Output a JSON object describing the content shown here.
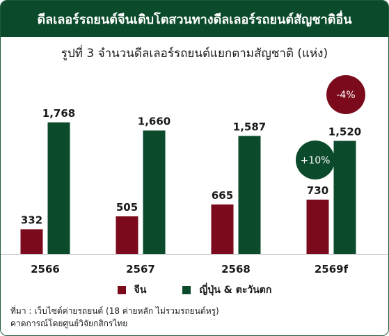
{
  "header": {
    "title": "ดีลเลอร์รถยนต์จีนเติบโตสวนทางดีลเลอร์รถยนต์สัญชาติอื่น"
  },
  "colors": {
    "china": "#7a0a1c",
    "japan_west": "#0b4a2b",
    "bubble_down": "#7a0a1c",
    "bubble_up": "#0b4a2b"
  },
  "chart_data": {
    "type": "bar",
    "title": "รูปที่ 3 จำนวนดีลเลอร์รถยนต์แยกตามสัญชาติ (แห่ง)",
    "categories": [
      "2566",
      "2567",
      "2568",
      "2569f"
    ],
    "series": [
      {
        "name": "จีน",
        "values": [
          332,
          505,
          665,
          730
        ],
        "labels": [
          "332",
          "505",
          "665",
          "730"
        ]
      },
      {
        "name": "ญี่ปุ่น & ตะวันตก",
        "values": [
          1768,
          1660,
          1587,
          1520
        ],
        "labels": [
          "1,768",
          "1,660",
          "1,587",
          "1,520"
        ]
      }
    ],
    "ylim": [
      0,
      1768
    ],
    "grid": false,
    "legend": "bottom",
    "annotations": [
      {
        "text": "+10%",
        "category": "2569f",
        "series": "จีน"
      },
      {
        "text": "-4%",
        "category": "2569f",
        "series": "ญี่ปุ่น & ตะวันตก"
      }
    ]
  },
  "footnote": {
    "line1": "ที่มา : เว็บไซต์ค่ายรถยนต์ (18 ค่ายหลัก ไม่รวมรถยนต์หรู)",
    "line2": "คาดการณ์โดยศูนย์วิจัยกสิกรไทย"
  }
}
